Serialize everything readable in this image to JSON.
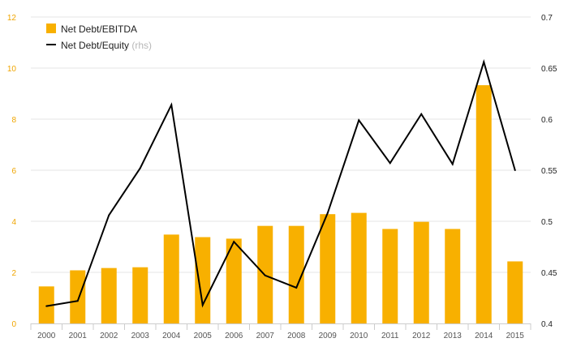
{
  "chart_data": {
    "type": "bar",
    "categories": [
      "2000",
      "2001",
      "2002",
      "2003",
      "2004",
      "2005",
      "2006",
      "2007",
      "2008",
      "2009",
      "2010",
      "2011",
      "2012",
      "2013",
      "2014",
      "2015"
    ],
    "series": [
      {
        "name": "Net Debt/EBITDA",
        "type": "bar",
        "axis": "left",
        "color": "#f8b000",
        "values": [
          1.45,
          2.08,
          2.17,
          2.2,
          3.48,
          3.38,
          3.32,
          3.82,
          3.82,
          4.28,
          4.33,
          3.7,
          3.98,
          3.7,
          9.33,
          2.43
        ]
      },
      {
        "name": "Net Debt/Equity",
        "name_suffix": "(rhs)",
        "type": "line",
        "axis": "right",
        "color": "#000000",
        "values": [
          0.417,
          0.422,
          0.506,
          0.552,
          0.614,
          0.418,
          0.48,
          0.447,
          0.435,
          0.508,
          0.599,
          0.557,
          0.605,
          0.556,
          0.656,
          0.55
        ]
      }
    ],
    "y_left": {
      "min": 0,
      "max": 12,
      "ticks": [
        "0",
        "2",
        "4",
        "6",
        "8",
        "10",
        "12"
      ]
    },
    "y_right": {
      "min": 0.4,
      "max": 0.7,
      "ticks": [
        "0.4",
        "0.45",
        "0.5",
        "0.55",
        "0.6",
        "0.65",
        "0.7"
      ]
    },
    "grid": true,
    "legend_position": "top-left"
  }
}
